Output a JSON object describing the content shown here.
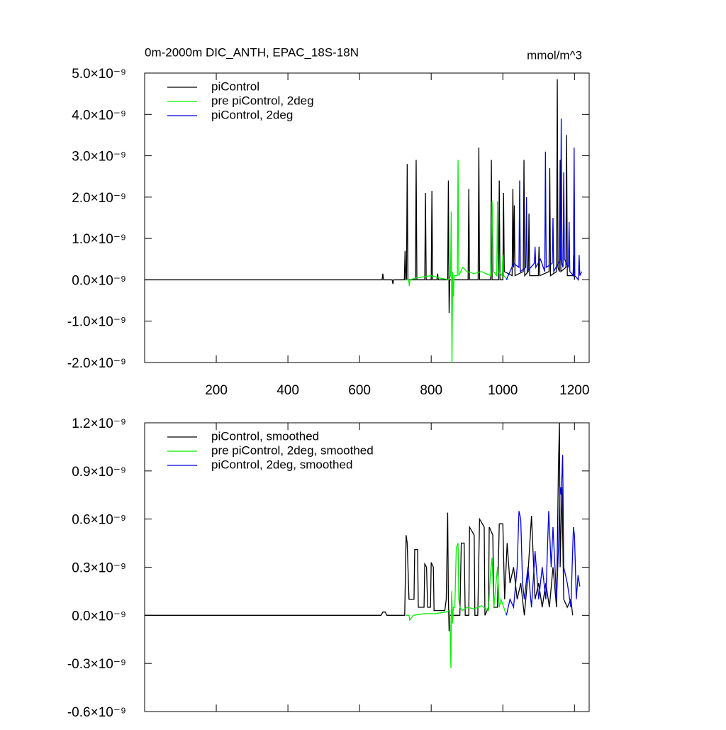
{
  "chart_data": [
    {
      "type": "line",
      "title": "0m-2000m DIC_ANTH, EPAC_18S-18N",
      "subtitle": "mmol/m^3",
      "xlim": [
        0,
        1241
      ],
      "xticks": [
        200,
        400,
        600,
        800,
        1000,
        1200
      ],
      "xtick_labels": true,
      "ylim": [
        -2e-09,
        5e-09
      ],
      "yticks": [
        {
          "value": -2e-09,
          "label": "-2.0×10⁻⁹"
        },
        {
          "value": -1e-09,
          "label": "-1.0×10⁻⁹"
        },
        {
          "value": 0,
          "label": "0.0×10⁻⁹"
        },
        {
          "value": 1e-09,
          "label": "1.0×10⁻⁹"
        },
        {
          "value": 2e-09,
          "label": "2.0×10⁻⁹"
        },
        {
          "value": 3e-09,
          "label": "3.0×10⁻⁹"
        },
        {
          "value": 4e-09,
          "label": "4.0×10⁻⁹"
        },
        {
          "value": 5e-09,
          "label": "5.0×10⁻⁹"
        }
      ],
      "legend": "upper left",
      "series": [
        {
          "name": "piControl",
          "color": "#000000",
          "x": [
            0,
            663,
            665,
            667,
            691,
            693,
            695,
            725,
            727,
            729,
            731,
            733,
            735,
            756,
            758,
            760,
            782,
            784,
            786,
            800,
            802,
            804,
            816,
            818,
            820,
            846,
            848,
            850,
            852,
            903,
            905,
            907,
            931,
            933,
            935,
            966,
            968,
            970,
            988,
            990,
            992,
            1000,
            1002,
            1004,
            1026,
            1028,
            1030,
            1032,
            1034,
            1057,
            1059,
            1061,
            1071,
            1073,
            1075,
            1099,
            1101,
            1103,
            1129,
            1131,
            1133,
            1150,
            1152,
            1154,
            1158,
            1160,
            1162,
            1176,
            1178,
            1180,
            1196,
            1198,
            1200
          ],
          "values": [
            0,
            0,
            1.5e-10,
            0,
            0,
            -1e-10,
            0,
            0,
            7e-10,
            0,
            0,
            2.8e-09,
            0,
            0,
            2.9e-09,
            0,
            0,
            2.1e-09,
            0,
            0,
            2.15e-09,
            0,
            0,
            1.5e-10,
            0,
            0,
            2.4e-09,
            -8e-10,
            0,
            0,
            2.2e-09,
            0,
            0,
            3.2e-09,
            0,
            0,
            2.9e-09,
            0,
            0,
            2.4e-09,
            0,
            0,
            2.1e-09,
            2e-10,
            1e-10,
            2.2e-09,
            3e-10,
            1.8e-09,
            1e-10,
            2e-10,
            2.9e-09,
            1e-10,
            2e-10,
            1.6e-09,
            1e-10,
            1e-10,
            8e-10,
            1e-10,
            2e-10,
            2.7e-09,
            1e-10,
            2e-10,
            4.85e-09,
            3e-10,
            2e-10,
            2.9e-09,
            2e-10,
            3e-10,
            3.5e-09,
            1e-10,
            1e-10,
            6e-10,
            0
          ]
        },
        {
          "name": "pre piControl, 2deg",
          "color": "#00ee00",
          "x": [
            730,
            737,
            739,
            741,
            760,
            800,
            820,
            850,
            854,
            856,
            858,
            860,
            862,
            864,
            873,
            875,
            877,
            888,
            900,
            920,
            940,
            966,
            970,
            974,
            983,
            985,
            987,
            998,
            1000,
            1002,
            1015
          ],
          "values": [
            0,
            0,
            -1.5e-10,
            0,
            5e-11,
            1e-10,
            5e-11,
            0,
            1e-10,
            1.65e-09,
            -2e-09,
            2e-10,
            -4e-10,
            1e-10,
            1e-10,
            2.9e-09,
            1e-10,
            3e-10,
            2e-10,
            1.5e-10,
            2e-10,
            1e-10,
            1.9e-09,
            2e-10,
            1e-10,
            1.9e-09,
            2e-10,
            1e-10,
            6e-10,
            1e-10,
            0
          ]
        },
        {
          "name": "piControl, 2deg",
          "color": "#0000dd",
          "x": [
            1010,
            1030,
            1045,
            1047,
            1049,
            1064,
            1066,
            1068,
            1088,
            1090,
            1092,
            1105,
            1117,
            1119,
            1121,
            1138,
            1140,
            1142,
            1161,
            1163,
            1165,
            1168,
            1170,
            1172,
            1183,
            1185,
            1187,
            1197,
            1199,
            1201,
            1211,
            1213,
            1215,
            1220
          ],
          "values": [
            0,
            4e-10,
            3e-10,
            2.4e-09,
            2e-10,
            3e-10,
            2e-09,
            2e-10,
            4e-10,
            8e-10,
            3e-10,
            5e-10,
            2e-10,
            3.1e-09,
            3e-10,
            4e-10,
            1.5e-09,
            2e-10,
            5e-10,
            3.9e-09,
            4e-10,
            3e-10,
            2.6e-09,
            5e-10,
            3e-10,
            1.4e-09,
            2e-10,
            1e-10,
            3.2e-09,
            1e-10,
            0,
            6e-10,
            1e-10,
            2e-10
          ]
        }
      ]
    },
    {
      "type": "line",
      "xlim": [
        0,
        1241
      ],
      "xticks": [
        200,
        400,
        600,
        800,
        1000,
        1200
      ],
      "xtick_labels": false,
      "ylim": [
        -6e-10,
        1.2e-09
      ],
      "yticks": [
        {
          "value": -6e-10,
          "label": "-0.6×10⁻⁹"
        },
        {
          "value": -3e-10,
          "label": "-0.3×10⁻⁹"
        },
        {
          "value": 0,
          "label": "0.0×10⁻⁹"
        },
        {
          "value": 3e-10,
          "label": "0.3×10⁻⁹"
        },
        {
          "value": 6e-10,
          "label": "0.6×10⁻⁹"
        },
        {
          "value": 9e-10,
          "label": "0.9×10⁻⁹"
        },
        {
          "value": 1.2e-09,
          "label": "1.2×10⁻⁹"
        }
      ],
      "legend": "upper left",
      "series": [
        {
          "name": "piControl, smoothed",
          "color": "#000000",
          "x": [
            0,
            660,
            665,
            672,
            676,
            720,
            726,
            730,
            733,
            738,
            742,
            752,
            754,
            762,
            764,
            780,
            782,
            787,
            790,
            798,
            800,
            806,
            808,
            838,
            842,
            846,
            848,
            850,
            852,
            856,
            870,
            880,
            884,
            892,
            895,
            905,
            907,
            920,
            922,
            930,
            935,
            948,
            950,
            960,
            962,
            972,
            975,
            985,
            990,
            1000,
            1005,
            1012,
            1020,
            1030,
            1040,
            1050,
            1060,
            1070,
            1080,
            1090,
            1100,
            1110,
            1120,
            1130,
            1140,
            1150,
            1155,
            1158,
            1160,
            1165,
            1170,
            1180,
            1190,
            1195
          ],
          "values": [
            0,
            0,
            2e-11,
            2e-11,
            0,
            0,
            0,
            5e-10,
            4.5e-10,
            1e-10,
            1e-10,
            1e-10,
            4.1e-10,
            4.1e-10,
            5e-11,
            5e-11,
            3.2e-10,
            3e-10,
            5e-11,
            5e-11,
            3.3e-10,
            3e-10,
            3e-11,
            3e-11,
            1e-10,
            6.4e-10,
            1e-10,
            -1e-10,
            0,
            0,
            0,
            0,
            4.5e-10,
            4.5e-10,
            0,
            0,
            5.5e-10,
            5e-10,
            0,
            0,
            6e-10,
            5.5e-10,
            0,
            5e-11,
            5.5e-10,
            5e-10,
            5e-11,
            5e-11,
            5.7e-10,
            5.7e-10,
            1e-10,
            4.5e-10,
            2e-10,
            3e-10,
            1e-10,
            2e-10,
            0,
            2.5e-10,
            6.2e-10,
            1e-10,
            2e-10,
            5e-11,
            2e-10,
            5e-11,
            3e-10,
            5e-11,
            9e-10,
            1.2e-09,
            3e-10,
            8e-10,
            1e-10,
            5e-11,
            1e-10,
            0
          ]
        },
        {
          "name": "pre piControl, 2deg, smoothed",
          "color": "#00ee00",
          "x": [
            730,
            738,
            740,
            750,
            780,
            810,
            840,
            852,
            855,
            857,
            860,
            862,
            866,
            870,
            875,
            877,
            880,
            886,
            900,
            920,
            940,
            960,
            965,
            970,
            975,
            985,
            990,
            995,
            1010
          ],
          "values": [
            0,
            0,
            -3e-11,
            0,
            1e-11,
            1e-11,
            2e-11,
            3e-11,
            -3.3e-10,
            1.5e-10,
            -5e-11,
            5e-11,
            5e-11,
            4.2e-10,
            4.5e-10,
            1e-10,
            5e-11,
            3e-11,
            5e-11,
            4e-11,
            6e-11,
            3e-11,
            2.5e-10,
            3.6e-10,
            5e-11,
            3e-10,
            5e-11,
            1e-10,
            0
          ]
        },
        {
          "name": "piControl, 2deg, smoothed",
          "color": "#0000dd",
          "x": [
            1010,
            1020,
            1030,
            1040,
            1045,
            1050,
            1055,
            1060,
            1070,
            1080,
            1090,
            1100,
            1110,
            1120,
            1128,
            1135,
            1140,
            1150,
            1155,
            1160,
            1163,
            1167,
            1170,
            1180,
            1190,
            1197,
            1200,
            1205,
            1210,
            1215
          ],
          "values": [
            0,
            1e-10,
            5e-11,
            3e-10,
            6.5e-10,
            6e-10,
            2e-10,
            1e-10,
            3e-10,
            5e-11,
            4e-10,
            1e-10,
            3e-10,
            1e-10,
            6.5e-10,
            3e-10,
            5.5e-10,
            1e-10,
            4e-10,
            8e-10,
            7.5e-10,
            1e-09,
            3e-10,
            2e-10,
            5e-11,
            5.5e-10,
            5e-10,
            1e-10,
            2.5e-10,
            1.8e-10
          ]
        }
      ]
    }
  ]
}
